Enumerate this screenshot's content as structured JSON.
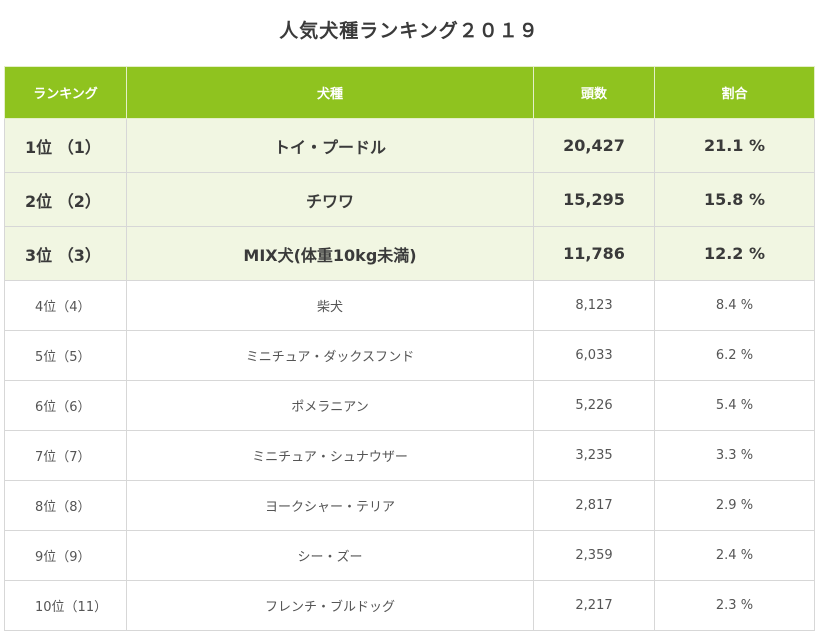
{
  "title": "人気犬種ランキング２０１９",
  "headers": {
    "rank": "ランキング",
    "breed": "犬種",
    "count": "頭数",
    "share": "割合"
  },
  "rows": [
    {
      "rank": "1位 （1）",
      "breed": "トイ・プードル",
      "count": "20,427",
      "share": "21.1 %"
    },
    {
      "rank": "2位 （2）",
      "breed": "チワワ",
      "count": "15,295",
      "share": "15.8 %"
    },
    {
      "rank": "3位 （3）",
      "breed": "MIX犬(体重10kg未満)",
      "count": "11,786",
      "share": "12.2 %"
    },
    {
      "rank": "4位（4）",
      "breed": "柴犬",
      "count": "8,123",
      "share": "8.4 %"
    },
    {
      "rank": "5位（5）",
      "breed": "ミニチュア・ダックスフンド",
      "count": "6,033",
      "share": "6.2 %"
    },
    {
      "rank": "6位（6）",
      "breed": "ポメラニアン",
      "count": "5,226",
      "share": "5.4 %"
    },
    {
      "rank": "7位（7）",
      "breed": "ミニチュア・シュナウザー",
      "count": "3,235",
      "share": "3.3 %"
    },
    {
      "rank": "8位（8）",
      "breed": "ヨークシャー・テリア",
      "count": "2,817",
      "share": "2.9 %"
    },
    {
      "rank": "9位（9）",
      "breed": "シー・ズー",
      "count": "2,359",
      "share": "2.4 %"
    },
    {
      "rank": "10位（11）",
      "breed": "フレンチ・ブルドッグ",
      "count": "2,217",
      "share": "2.3 %"
    }
  ],
  "colors": {
    "header_bg": "#8fc31f",
    "top3_bg": "#f1f6e2",
    "border": "#d7d7d7"
  }
}
